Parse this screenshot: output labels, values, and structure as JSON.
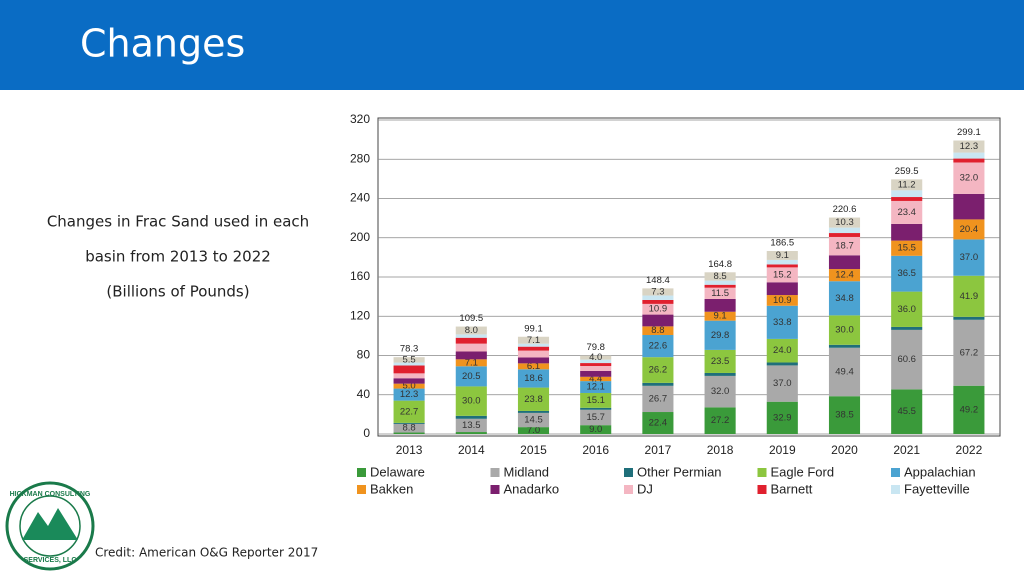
{
  "slide": {
    "title": "Changes",
    "text": [
      "Changes in Frac Sand used in each",
      "basin from 2013 to 2022",
      "(Billions of Pounds)"
    ],
    "credit": "Credit: American O&G Reporter 2017",
    "logo": [
      "HICKMAN CONSULTING",
      "SERVICES, LLC"
    ]
  },
  "chart_data": {
    "type": "stacked_bar",
    "categories": [
      "2013",
      "2014",
      "2015",
      "2016",
      "2017",
      "2018",
      "2019",
      "2020",
      "2021",
      "2022"
    ],
    "ylim": [
      0,
      320
    ],
    "yticks": [
      0,
      40,
      80,
      120,
      160,
      200,
      240,
      280,
      320
    ],
    "grid": true,
    "totals": [
      78.3,
      109.5,
      99.1,
      79.8,
      148.4,
      164.8,
      186.5,
      220.6,
      259.5,
      299.1
    ],
    "series": [
      {
        "name": "Delaware",
        "color": "#3a9a3a",
        "values": [
          1.5,
          2,
          7.0,
          9.0,
          22.4,
          27.2,
          32.9,
          38.5,
          45.5,
          49.2
        ],
        "value_labels": [
          null,
          null,
          "7.0",
          "9.0",
          "22.4",
          "27.2",
          "32.9",
          "38.5",
          "45.5",
          "49.2"
        ]
      },
      {
        "name": "Midland",
        "color": "#a9a9a9",
        "values": [
          8.8,
          13.5,
          14.5,
          15.7,
          26.7,
          32.0,
          37.0,
          49.4,
          60.6,
          67.2
        ],
        "value_labels": [
          "8.8",
          "13.5",
          "14.5",
          "15.7",
          "26.7",
          "32.0",
          "37.0",
          "49.4",
          "60.6",
          "67.2"
        ]
      },
      {
        "name": "Other Permian",
        "color": "#1f6f7a",
        "values": [
          1,
          3,
          2,
          2,
          3,
          3,
          3,
          3,
          3,
          3
        ],
        "value_labels": [
          null,
          null,
          null,
          null,
          null,
          null,
          null,
          null,
          null,
          null
        ]
      },
      {
        "name": "Eagle Ford",
        "color": "#8cc63f",
        "values": [
          22.7,
          30.0,
          23.8,
          15.1,
          26.2,
          23.5,
          24.0,
          30.0,
          36.0,
          41.9
        ],
        "value_labels": [
          "22.7",
          "30.0",
          "23.8",
          "15.1",
          "26.2",
          "23.5",
          "24.0",
          "30.0",
          "36.0",
          "41.9"
        ]
      },
      {
        "name": "Appalachian",
        "color": "#4ba3d1",
        "values": [
          12.3,
          20.5,
          18.6,
          12.1,
          22.6,
          29.8,
          33.8,
          34.8,
          36.5,
          37.0
        ],
        "value_labels": [
          "12.3",
          "20.5",
          "18.6",
          "12.1",
          "22.6",
          "29.8",
          "33.8",
          "34.8",
          "36.5",
          "37.0"
        ]
      },
      {
        "name": "Bakken",
        "color": "#f0931e",
        "values": [
          5.0,
          7.1,
          6.1,
          4.4,
          8.8,
          9.1,
          10.9,
          12.4,
          15.5,
          20.4
        ],
        "value_labels": [
          "5.0",
          "7.1",
          "6.1",
          "4.4",
          "8.8",
          "9.1",
          "10.9",
          "12.4",
          "15.5",
          "20.4"
        ]
      },
      {
        "name": "Anadarko",
        "color": "#7b1f6e",
        "values": [
          5.5,
          8,
          6,
          6,
          12,
          13,
          13,
          14,
          17,
          26
        ],
        "value_labels": [
          null,
          null,
          null,
          null,
          null,
          null,
          null,
          null,
          null,
          null
        ]
      },
      {
        "name": "DJ",
        "color": "#f4b6c2",
        "values": [
          5,
          8,
          7,
          5,
          10.9,
          11.5,
          15.2,
          18.7,
          23.4,
          32.0
        ],
        "value_labels": [
          null,
          null,
          null,
          null,
          "10.9",
          "11.5",
          "15.2",
          "18.7",
          "23.4",
          "32.0"
        ]
      },
      {
        "name": "Barnett",
        "color": "#e0202e",
        "values": [
          8,
          6,
          4,
          3,
          4,
          3,
          3,
          4,
          4,
          4
        ],
        "value_labels": [
          null,
          null,
          null,
          null,
          null,
          null,
          null,
          null,
          null,
          null
        ]
      },
      {
        "name": "Fayetteville",
        "color": "#c9e6f2",
        "values": [
          3,
          3.4,
          3,
          3.5,
          4.5,
          4.2,
          4.6,
          5.5,
          6.8,
          6.1
        ],
        "value_labels": [
          null,
          null,
          null,
          null,
          null,
          null,
          null,
          null,
          null,
          null
        ]
      },
      {
        "name": null,
        "color": "#d9d4c4",
        "values": [
          5.5,
          8.0,
          7.1,
          4.0,
          7.3,
          8.5,
          9.1,
          10.3,
          11.2,
          12.3
        ],
        "value_labels": [
          "5.5",
          "8.0",
          "7.1",
          "4.0",
          "7.3",
          "8.5",
          "9.1",
          "10.3",
          "11.2",
          "12.3"
        ]
      }
    ]
  }
}
